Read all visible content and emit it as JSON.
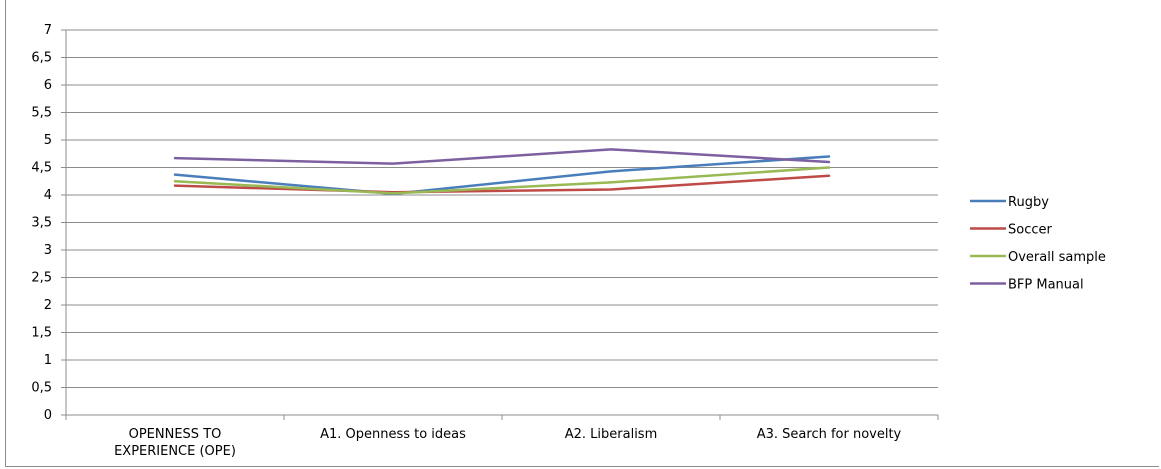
{
  "chart_data": {
    "type": "line",
    "title": "",
    "xlabel": "",
    "ylabel": "",
    "categories": [
      [
        "OPENNESS TO",
        "EXPERIENCE (OPE)"
      ],
      [
        "A1. Openness to ideas"
      ],
      [
        "A2. Liberalism"
      ],
      [
        "A3. Search for novelty"
      ]
    ],
    "y_ticks": [
      "0",
      "0,5",
      "1",
      "1,5",
      "2",
      "2,5",
      "3",
      "3,5",
      "4",
      "4,5",
      "5",
      "5,5",
      "6",
      "6,5",
      "7"
    ],
    "ylim": [
      0,
      7
    ],
    "y_step": 0.5,
    "grid": true,
    "legend_position": "right",
    "series": [
      {
        "name": "Rugby",
        "color": "#4a7ebb",
        "values": [
          4.37,
          4.02,
          4.43,
          4.7
        ]
      },
      {
        "name": "Soccer",
        "color": "#be4b48",
        "values": [
          4.17,
          4.05,
          4.1,
          4.35
        ]
      },
      {
        "name": "Overall sample",
        "color": "#98b954",
        "values": [
          4.25,
          4.03,
          4.23,
          4.5
        ]
      },
      {
        "name": "BFP Manual",
        "color": "#7d60a0",
        "values": [
          4.67,
          4.57,
          4.83,
          4.6
        ]
      }
    ]
  }
}
